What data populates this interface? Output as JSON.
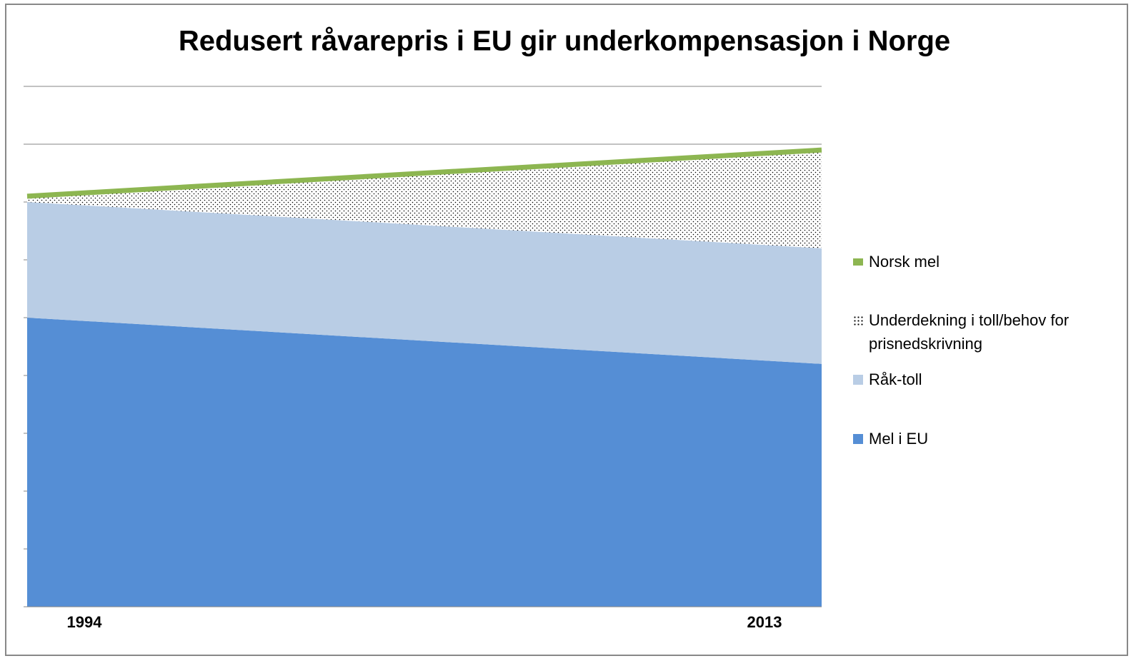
{
  "chart_data": {
    "type": "stacked_area_line",
    "title": "Redusert råvarepris i EU gir underkompensasjon i Norge",
    "categories": [
      "1994",
      "2013"
    ],
    "series": [
      {
        "name": "Mel i EU",
        "kind": "area",
        "color": "#558ed5",
        "values": [
          5.0,
          4.2
        ]
      },
      {
        "name": "Råk-toll",
        "kind": "area",
        "color": "#b9cde5",
        "values": [
          2.0,
          2.0
        ]
      },
      {
        "name": "Underdekning i toll/behov for prisnedskrivning",
        "kind": "area",
        "color": "#000000",
        "pattern": "dots",
        "values": [
          0.1,
          1.7
        ]
      },
      {
        "name": "Norsk mel",
        "kind": "line",
        "color": "#8db651",
        "values": [
          7.1,
          7.9
        ]
      }
    ],
    "ylim": [
      0,
      9
    ],
    "yticks": [
      0,
      1,
      2,
      3,
      4,
      5,
      6,
      7,
      8,
      9
    ],
    "grid": true,
    "legend": "right"
  }
}
